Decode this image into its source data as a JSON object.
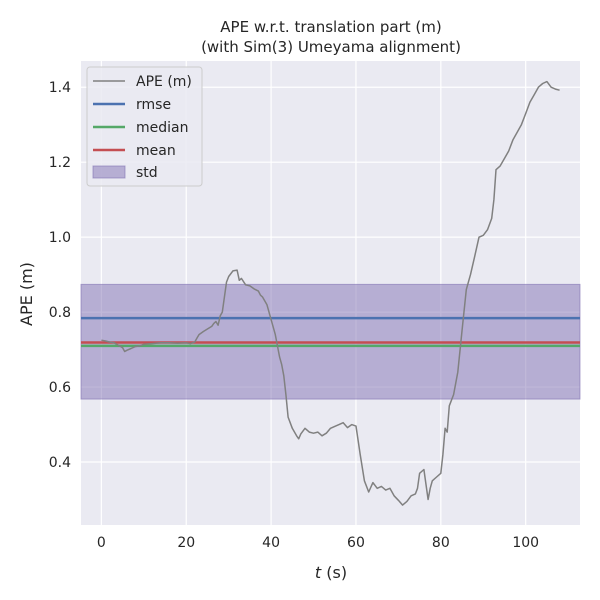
{
  "chart_data": {
    "type": "line",
    "title": "APE w.r.t. translation part (m)",
    "subtitle": "(with Sim(3) Umeyama alignment)",
    "xlabel_var": "t",
    "xlabel_unit": " (s)",
    "ylabel": "APE (m)",
    "xlim": [
      -4.8,
      112.8
    ],
    "ylim": [
      0.232,
      1.47
    ],
    "xticks": [
      0,
      20,
      40,
      60,
      80,
      100
    ],
    "yticks": [
      0.4,
      0.6,
      0.8,
      1.0,
      1.2,
      1.4
    ],
    "ytick_labels": [
      "0.4",
      "0.6",
      "0.8",
      "1.0",
      "1.2",
      "1.4"
    ],
    "grid": true,
    "legend_position": "top-left",
    "colors": {
      "background": "#eaeaf2",
      "grid": "#ffffff",
      "ape": "#808080",
      "rmse": "#4c72b0",
      "median": "#55a868",
      "mean": "#c44e52",
      "std": "#8172b3"
    },
    "series": [
      {
        "name": "APE (m)",
        "x": [
          0,
          1,
          2,
          3,
          4,
          5,
          5.5,
          6,
          7,
          8,
          9,
          10,
          12,
          14,
          16,
          18,
          20,
          21,
          22,
          22.5,
          23,
          24,
          25,
          26,
          26.5,
          27,
          27.5,
          28,
          28.5,
          29,
          29.5,
          30,
          31,
          32,
          32.5,
          33,
          34,
          35,
          36,
          37,
          37.5,
          38,
          39,
          40,
          41,
          42,
          42.5,
          43,
          43.5,
          44,
          45,
          46,
          46.5,
          47,
          48,
          49,
          50,
          51,
          52,
          53,
          54,
          55,
          56,
          57,
          58,
          59,
          60,
          61,
          62,
          63,
          64,
          65,
          66,
          67,
          68,
          69,
          70,
          71,
          72,
          73,
          74,
          74.5,
          75,
          76,
          76.5,
          77,
          77.5,
          78,
          79,
          80,
          80.5,
          81,
          81.5,
          82,
          83,
          84,
          85,
          86,
          87,
          88,
          89,
          90,
          91,
          92,
          92.5,
          93,
          94,
          95,
          96,
          97,
          98,
          99,
          100,
          101,
          102,
          103,
          104,
          105,
          106,
          107,
          108
        ],
        "y": [
          0.725,
          0.723,
          0.72,
          0.718,
          0.712,
          0.705,
          0.695,
          0.698,
          0.703,
          0.708,
          0.71,
          0.714,
          0.716,
          0.718,
          0.718,
          0.717,
          0.718,
          0.716,
          0.72,
          0.73,
          0.74,
          0.748,
          0.755,
          0.762,
          0.77,
          0.775,
          0.765,
          0.79,
          0.8,
          0.84,
          0.88,
          0.895,
          0.91,
          0.912,
          0.885,
          0.89,
          0.873,
          0.87,
          0.862,
          0.856,
          0.845,
          0.84,
          0.82,
          0.78,
          0.74,
          0.68,
          0.66,
          0.63,
          0.58,
          0.52,
          0.49,
          0.47,
          0.462,
          0.475,
          0.49,
          0.48,
          0.477,
          0.48,
          0.47,
          0.477,
          0.49,
          0.495,
          0.5,
          0.505,
          0.492,
          0.5,
          0.496,
          0.42,
          0.35,
          0.32,
          0.345,
          0.33,
          0.335,
          0.325,
          0.33,
          0.31,
          0.298,
          0.285,
          0.295,
          0.31,
          0.315,
          0.33,
          0.37,
          0.38,
          0.34,
          0.3,
          0.33,
          0.35,
          0.36,
          0.37,
          0.42,
          0.49,
          0.48,
          0.55,
          0.58,
          0.64,
          0.75,
          0.86,
          0.9,
          0.95,
          1.0,
          1.005,
          1.02,
          1.05,
          1.1,
          1.18,
          1.19,
          1.21,
          1.23,
          1.26,
          1.28,
          1.3,
          1.33,
          1.36,
          1.38,
          1.4,
          1.41,
          1.415,
          1.4,
          1.395,
          1.392
        ]
      },
      {
        "name": "rmse",
        "value": 0.784
      },
      {
        "name": "median",
        "value": 0.71
      },
      {
        "name": "mean",
        "value": 0.719
      },
      {
        "name": "std",
        "range": [
          0.568,
          0.874
        ]
      }
    ]
  }
}
